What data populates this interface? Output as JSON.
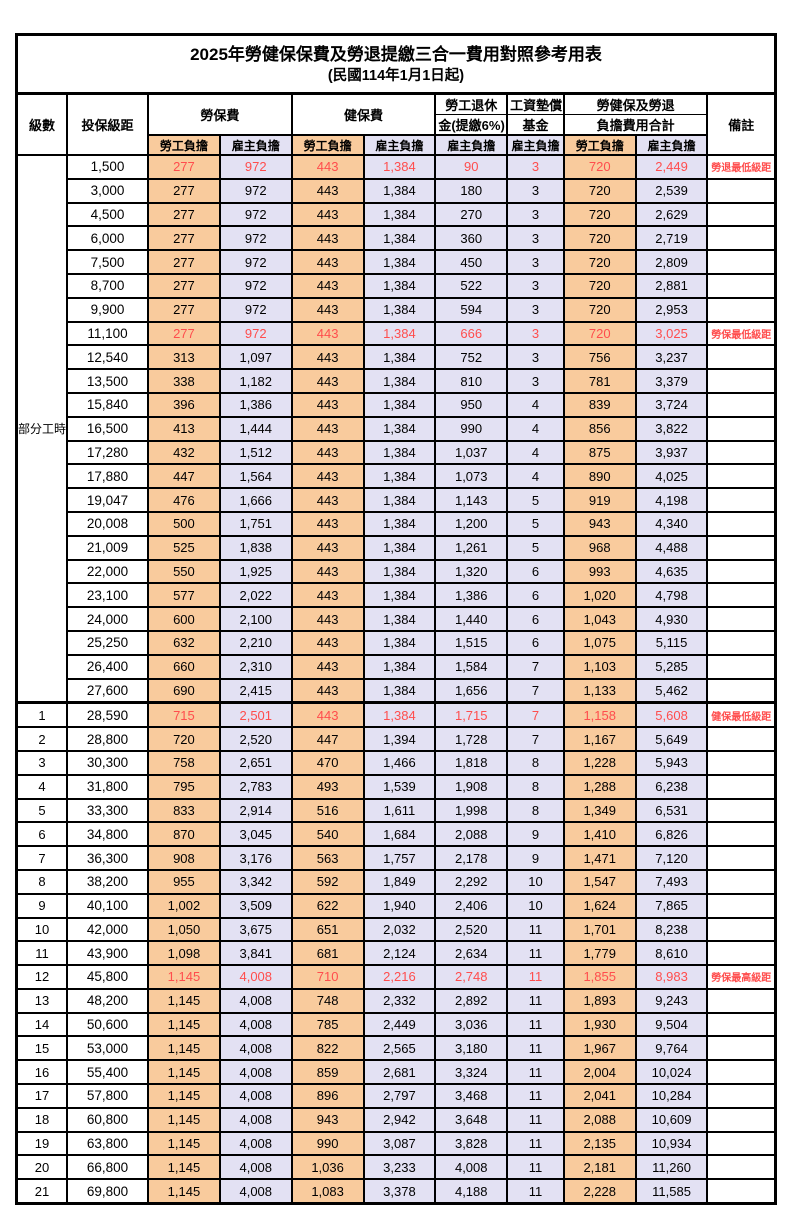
{
  "title": "2025年勞健保保費及勞退提繳三合一費用對照參考用表",
  "subtitle": "(民國114年1月1日起)",
  "colors": {
    "employee_col_bg": "#F9CB9D",
    "employer_col_bg": "#E3E1F3",
    "highlight_text": "#FF4D4D",
    "border": "#000000"
  },
  "header": {
    "level": "級數",
    "bracket": "投保級距",
    "labor_insurance": "勞保費",
    "health_insurance": "健保費",
    "pension_line1": "勞工退休",
    "pension_line2": "金(提繳6%)",
    "wage_fund_line1": "工資墊償",
    "wage_fund_line2": "基金",
    "total_line1": "勞健保及勞退",
    "total_line2": "負擔費用合計",
    "remark": "備註",
    "employee_share": "勞工負擔",
    "employer_share": "雇主負擔"
  },
  "part_time_label": "部分工時",
  "rows": [
    {
      "lv": "",
      "br": "1,500",
      "li_emp": "277",
      "li_er": "972",
      "hi_emp": "443",
      "hi_er": "1,384",
      "pen": "90",
      "fund": "3",
      "tot_emp": "720",
      "tot_er": "2,449",
      "rm": "勞退最低級距",
      "red": true
    },
    {
      "lv": "",
      "br": "3,000",
      "li_emp": "277",
      "li_er": "972",
      "hi_emp": "443",
      "hi_er": "1,384",
      "pen": "180",
      "fund": "3",
      "tot_emp": "720",
      "tot_er": "2,539",
      "rm": "",
      "red": false
    },
    {
      "lv": "",
      "br": "4,500",
      "li_emp": "277",
      "li_er": "972",
      "hi_emp": "443",
      "hi_er": "1,384",
      "pen": "270",
      "fund": "3",
      "tot_emp": "720",
      "tot_er": "2,629",
      "rm": "",
      "red": false
    },
    {
      "lv": "",
      "br": "6,000",
      "li_emp": "277",
      "li_er": "972",
      "hi_emp": "443",
      "hi_er": "1,384",
      "pen": "360",
      "fund": "3",
      "tot_emp": "720",
      "tot_er": "2,719",
      "rm": "",
      "red": false
    },
    {
      "lv": "",
      "br": "7,500",
      "li_emp": "277",
      "li_er": "972",
      "hi_emp": "443",
      "hi_er": "1,384",
      "pen": "450",
      "fund": "3",
      "tot_emp": "720",
      "tot_er": "2,809",
      "rm": "",
      "red": false
    },
    {
      "lv": "",
      "br": "8,700",
      "li_emp": "277",
      "li_er": "972",
      "hi_emp": "443",
      "hi_er": "1,384",
      "pen": "522",
      "fund": "3",
      "tot_emp": "720",
      "tot_er": "2,881",
      "rm": "",
      "red": false
    },
    {
      "lv": "",
      "br": "9,900",
      "li_emp": "277",
      "li_er": "972",
      "hi_emp": "443",
      "hi_er": "1,384",
      "pen": "594",
      "fund": "3",
      "tot_emp": "720",
      "tot_er": "2,953",
      "rm": "",
      "red": false
    },
    {
      "lv": "",
      "br": "11,100",
      "li_emp": "277",
      "li_er": "972",
      "hi_emp": "443",
      "hi_er": "1,384",
      "pen": "666",
      "fund": "3",
      "tot_emp": "720",
      "tot_er": "3,025",
      "rm": "勞保最低級距",
      "red": true
    },
    {
      "lv": "",
      "br": "12,540",
      "li_emp": "313",
      "li_er": "1,097",
      "hi_emp": "443",
      "hi_er": "1,384",
      "pen": "752",
      "fund": "3",
      "tot_emp": "756",
      "tot_er": "3,237",
      "rm": "",
      "red": false
    },
    {
      "lv": "",
      "br": "13,500",
      "li_emp": "338",
      "li_er": "1,182",
      "hi_emp": "443",
      "hi_er": "1,384",
      "pen": "810",
      "fund": "3",
      "tot_emp": "781",
      "tot_er": "3,379",
      "rm": "",
      "red": false
    },
    {
      "lv": "",
      "br": "15,840",
      "li_emp": "396",
      "li_er": "1,386",
      "hi_emp": "443",
      "hi_er": "1,384",
      "pen": "950",
      "fund": "4",
      "tot_emp": "839",
      "tot_er": "3,724",
      "rm": "",
      "red": false
    },
    {
      "lv": "",
      "br": "16,500",
      "li_emp": "413",
      "li_er": "1,444",
      "hi_emp": "443",
      "hi_er": "1,384",
      "pen": "990",
      "fund": "4",
      "tot_emp": "856",
      "tot_er": "3,822",
      "rm": "",
      "red": false
    },
    {
      "lv": "",
      "br": "17,280",
      "li_emp": "432",
      "li_er": "1,512",
      "hi_emp": "443",
      "hi_er": "1,384",
      "pen": "1,037",
      "fund": "4",
      "tot_emp": "875",
      "tot_er": "3,937",
      "rm": "",
      "red": false
    },
    {
      "lv": "",
      "br": "17,880",
      "li_emp": "447",
      "li_er": "1,564",
      "hi_emp": "443",
      "hi_er": "1,384",
      "pen": "1,073",
      "fund": "4",
      "tot_emp": "890",
      "tot_er": "4,025",
      "rm": "",
      "red": false
    },
    {
      "lv": "",
      "br": "19,047",
      "li_emp": "476",
      "li_er": "1,666",
      "hi_emp": "443",
      "hi_er": "1,384",
      "pen": "1,143",
      "fund": "5",
      "tot_emp": "919",
      "tot_er": "4,198",
      "rm": "",
      "red": false
    },
    {
      "lv": "",
      "br": "20,008",
      "li_emp": "500",
      "li_er": "1,751",
      "hi_emp": "443",
      "hi_er": "1,384",
      "pen": "1,200",
      "fund": "5",
      "tot_emp": "943",
      "tot_er": "4,340",
      "rm": "",
      "red": false
    },
    {
      "lv": "",
      "br": "21,009",
      "li_emp": "525",
      "li_er": "1,838",
      "hi_emp": "443",
      "hi_er": "1,384",
      "pen": "1,261",
      "fund": "5",
      "tot_emp": "968",
      "tot_er": "4,488",
      "rm": "",
      "red": false
    },
    {
      "lv": "",
      "br": "22,000",
      "li_emp": "550",
      "li_er": "1,925",
      "hi_emp": "443",
      "hi_er": "1,384",
      "pen": "1,320",
      "fund": "6",
      "tot_emp": "993",
      "tot_er": "4,635",
      "rm": "",
      "red": false
    },
    {
      "lv": "",
      "br": "23,100",
      "li_emp": "577",
      "li_er": "2,022",
      "hi_emp": "443",
      "hi_er": "1,384",
      "pen": "1,386",
      "fund": "6",
      "tot_emp": "1,020",
      "tot_er": "4,798",
      "rm": "",
      "red": false
    },
    {
      "lv": "",
      "br": "24,000",
      "li_emp": "600",
      "li_er": "2,100",
      "hi_emp": "443",
      "hi_er": "1,384",
      "pen": "1,440",
      "fund": "6",
      "tot_emp": "1,043",
      "tot_er": "4,930",
      "rm": "",
      "red": false
    },
    {
      "lv": "",
      "br": "25,250",
      "li_emp": "632",
      "li_er": "2,210",
      "hi_emp": "443",
      "hi_er": "1,384",
      "pen": "1,515",
      "fund": "6",
      "tot_emp": "1,075",
      "tot_er": "5,115",
      "rm": "",
      "red": false
    },
    {
      "lv": "",
      "br": "26,400",
      "li_emp": "660",
      "li_er": "2,310",
      "hi_emp": "443",
      "hi_er": "1,384",
      "pen": "1,584",
      "fund": "7",
      "tot_emp": "1,103",
      "tot_er": "5,285",
      "rm": "",
      "red": false
    },
    {
      "lv": "",
      "br": "27,600",
      "li_emp": "690",
      "li_er": "2,415",
      "hi_emp": "443",
      "hi_er": "1,384",
      "pen": "1,656",
      "fund": "7",
      "tot_emp": "1,133",
      "tot_er": "5,462",
      "rm": "",
      "red": false
    },
    {
      "lv": "1",
      "br": "28,590",
      "li_emp": "715",
      "li_er": "2,501",
      "hi_emp": "443",
      "hi_er": "1,384",
      "pen": "1,715",
      "fund": "7",
      "tot_emp": "1,158",
      "tot_er": "5,608",
      "rm": "健保最低級距",
      "red": true
    },
    {
      "lv": "2",
      "br": "28,800",
      "li_emp": "720",
      "li_er": "2,520",
      "hi_emp": "447",
      "hi_er": "1,394",
      "pen": "1,728",
      "fund": "7",
      "tot_emp": "1,167",
      "tot_er": "5,649",
      "rm": "",
      "red": false
    },
    {
      "lv": "3",
      "br": "30,300",
      "li_emp": "758",
      "li_er": "2,651",
      "hi_emp": "470",
      "hi_er": "1,466",
      "pen": "1,818",
      "fund": "8",
      "tot_emp": "1,228",
      "tot_er": "5,943",
      "rm": "",
      "red": false
    },
    {
      "lv": "4",
      "br": "31,800",
      "li_emp": "795",
      "li_er": "2,783",
      "hi_emp": "493",
      "hi_er": "1,539",
      "pen": "1,908",
      "fund": "8",
      "tot_emp": "1,288",
      "tot_er": "6,238",
      "rm": "",
      "red": false
    },
    {
      "lv": "5",
      "br": "33,300",
      "li_emp": "833",
      "li_er": "2,914",
      "hi_emp": "516",
      "hi_er": "1,611",
      "pen": "1,998",
      "fund": "8",
      "tot_emp": "1,349",
      "tot_er": "6,531",
      "rm": "",
      "red": false
    },
    {
      "lv": "6",
      "br": "34,800",
      "li_emp": "870",
      "li_er": "3,045",
      "hi_emp": "540",
      "hi_er": "1,684",
      "pen": "2,088",
      "fund": "9",
      "tot_emp": "1,410",
      "tot_er": "6,826",
      "rm": "",
      "red": false
    },
    {
      "lv": "7",
      "br": "36,300",
      "li_emp": "908",
      "li_er": "3,176",
      "hi_emp": "563",
      "hi_er": "1,757",
      "pen": "2,178",
      "fund": "9",
      "tot_emp": "1,471",
      "tot_er": "7,120",
      "rm": "",
      "red": false
    },
    {
      "lv": "8",
      "br": "38,200",
      "li_emp": "955",
      "li_er": "3,342",
      "hi_emp": "592",
      "hi_er": "1,849",
      "pen": "2,292",
      "fund": "10",
      "tot_emp": "1,547",
      "tot_er": "7,493",
      "rm": "",
      "red": false
    },
    {
      "lv": "9",
      "br": "40,100",
      "li_emp": "1,002",
      "li_er": "3,509",
      "hi_emp": "622",
      "hi_er": "1,940",
      "pen": "2,406",
      "fund": "10",
      "tot_emp": "1,624",
      "tot_er": "7,865",
      "rm": "",
      "red": false
    },
    {
      "lv": "10",
      "br": "42,000",
      "li_emp": "1,050",
      "li_er": "3,675",
      "hi_emp": "651",
      "hi_er": "2,032",
      "pen": "2,520",
      "fund": "11",
      "tot_emp": "1,701",
      "tot_er": "8,238",
      "rm": "",
      "red": false
    },
    {
      "lv": "11",
      "br": "43,900",
      "li_emp": "1,098",
      "li_er": "3,841",
      "hi_emp": "681",
      "hi_er": "2,124",
      "pen": "2,634",
      "fund": "11",
      "tot_emp": "1,779",
      "tot_er": "8,610",
      "rm": "",
      "red": false
    },
    {
      "lv": "12",
      "br": "45,800",
      "li_emp": "1,145",
      "li_er": "4,008",
      "hi_emp": "710",
      "hi_er": "2,216",
      "pen": "2,748",
      "fund": "11",
      "tot_emp": "1,855",
      "tot_er": "8,983",
      "rm": "勞保最高級距",
      "red": true
    },
    {
      "lv": "13",
      "br": "48,200",
      "li_emp": "1,145",
      "li_er": "4,008",
      "hi_emp": "748",
      "hi_er": "2,332",
      "pen": "2,892",
      "fund": "11",
      "tot_emp": "1,893",
      "tot_er": "9,243",
      "rm": "",
      "red": false
    },
    {
      "lv": "14",
      "br": "50,600",
      "li_emp": "1,145",
      "li_er": "4,008",
      "hi_emp": "785",
      "hi_er": "2,449",
      "pen": "3,036",
      "fund": "11",
      "tot_emp": "1,930",
      "tot_er": "9,504",
      "rm": "",
      "red": false
    },
    {
      "lv": "15",
      "br": "53,000",
      "li_emp": "1,145",
      "li_er": "4,008",
      "hi_emp": "822",
      "hi_er": "2,565",
      "pen": "3,180",
      "fund": "11",
      "tot_emp": "1,967",
      "tot_er": "9,764",
      "rm": "",
      "red": false
    },
    {
      "lv": "16",
      "br": "55,400",
      "li_emp": "1,145",
      "li_er": "4,008",
      "hi_emp": "859",
      "hi_er": "2,681",
      "pen": "3,324",
      "fund": "11",
      "tot_emp": "2,004",
      "tot_er": "10,024",
      "rm": "",
      "red": false
    },
    {
      "lv": "17",
      "br": "57,800",
      "li_emp": "1,145",
      "li_er": "4,008",
      "hi_emp": "896",
      "hi_er": "2,797",
      "pen": "3,468",
      "fund": "11",
      "tot_emp": "2,041",
      "tot_er": "10,284",
      "rm": "",
      "red": false
    },
    {
      "lv": "18",
      "br": "60,800",
      "li_emp": "1,145",
      "li_er": "4,008",
      "hi_emp": "943",
      "hi_er": "2,942",
      "pen": "3,648",
      "fund": "11",
      "tot_emp": "2,088",
      "tot_er": "10,609",
      "rm": "",
      "red": false
    },
    {
      "lv": "19",
      "br": "63,800",
      "li_emp": "1,145",
      "li_er": "4,008",
      "hi_emp": "990",
      "hi_er": "3,087",
      "pen": "3,828",
      "fund": "11",
      "tot_emp": "2,135",
      "tot_er": "10,934",
      "rm": "",
      "red": false
    },
    {
      "lv": "20",
      "br": "66,800",
      "li_emp": "1,145",
      "li_er": "4,008",
      "hi_emp": "1,036",
      "hi_er": "3,233",
      "pen": "4,008",
      "fund": "11",
      "tot_emp": "2,181",
      "tot_er": "11,260",
      "rm": "",
      "red": false
    },
    {
      "lv": "21",
      "br": "69,800",
      "li_emp": "1,145",
      "li_er": "4,008",
      "hi_emp": "1,083",
      "hi_er": "3,378",
      "pen": "4,188",
      "fund": "11",
      "tot_emp": "2,228",
      "tot_er": "11,585",
      "rm": "",
      "red": false
    }
  ]
}
